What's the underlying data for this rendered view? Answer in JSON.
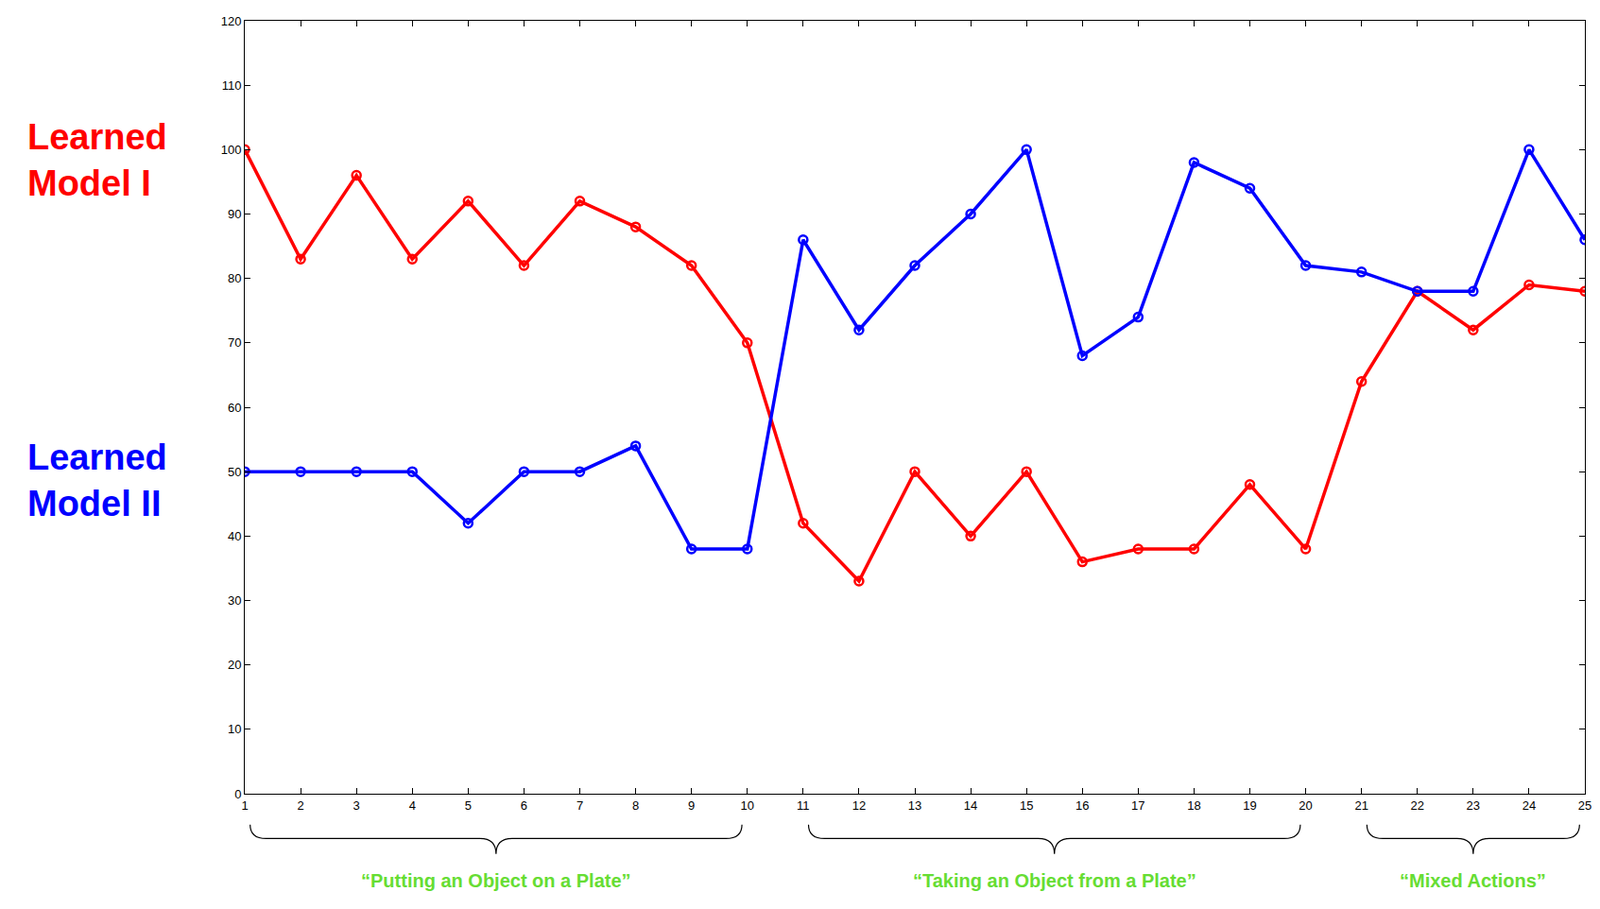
{
  "chart_data": {
    "type": "line",
    "x": [
      1,
      2,
      3,
      4,
      5,
      6,
      7,
      8,
      9,
      10,
      11,
      12,
      13,
      14,
      15,
      16,
      17,
      18,
      19,
      20,
      21,
      22,
      23,
      24,
      25
    ],
    "series": [
      {
        "name": "Learned Model I",
        "color": "#ff0000",
        "marker": "circle-open",
        "line_style": "solid",
        "values": [
          100,
          83,
          96,
          83,
          92,
          82,
          92,
          88,
          82,
          70,
          42,
          33,
          50,
          40,
          50,
          36,
          38,
          38,
          48,
          38,
          64,
          78,
          72,
          79,
          78
        ]
      },
      {
        "name": "Learned Model II",
        "color": "#0000ff",
        "marker": "circle-open",
        "line_style": "solid",
        "values": [
          50,
          50,
          50,
          50,
          42,
          50,
          50,
          54,
          38,
          38,
          86,
          72,
          82,
          90,
          100,
          68,
          74,
          98,
          94,
          82,
          81,
          78,
          78,
          100,
          86
        ]
      }
    ],
    "xlim": [
      1,
      25
    ],
    "ylim": [
      0,
      120
    ],
    "xticks": [
      1,
      2,
      3,
      4,
      5,
      6,
      7,
      8,
      9,
      10,
      11,
      12,
      13,
      14,
      15,
      16,
      17,
      18,
      19,
      20,
      21,
      22,
      23,
      24,
      25
    ],
    "yticks": [
      0,
      10,
      20,
      30,
      40,
      50,
      60,
      70,
      80,
      90,
      100,
      110,
      120
    ],
    "grid": false,
    "groups": [
      {
        "label": "“Putting an Object on a Plate”",
        "start": 1,
        "end": 10
      },
      {
        "label": "“Taking an Object from a Plate”",
        "start": 11,
        "end": 20
      },
      {
        "label": "“Mixed Actions”",
        "start": 21,
        "end": 25
      }
    ],
    "groups_color": "#66dd33"
  }
}
